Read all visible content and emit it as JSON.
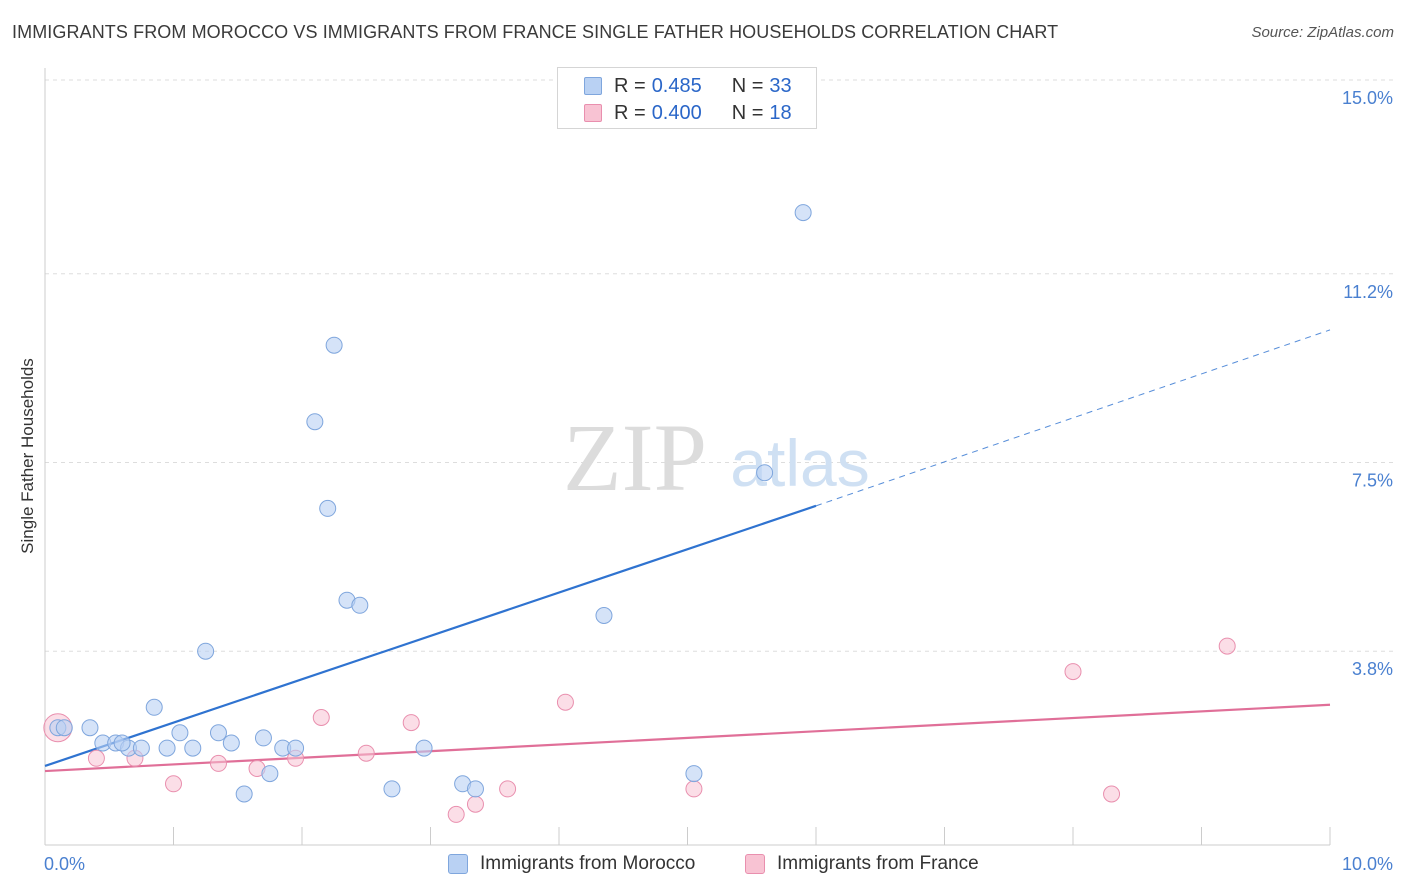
{
  "title": "IMMIGRANTS FROM MOROCCO VS IMMIGRANTS FROM FRANCE SINGLE FATHER HOUSEHOLDS CORRELATION CHART",
  "source": "Source: ZipAtlas.com",
  "watermark": {
    "zip": "ZIP",
    "atlas": "atlas"
  },
  "legend": {
    "r_label": "R =",
    "n_label": "N =",
    "rows": [
      {
        "r": "0.485",
        "n": "33"
      },
      {
        "r": "0.400",
        "n": "18"
      }
    ]
  },
  "colors": {
    "morocco_fill": "#b9d1f3",
    "morocco_stroke": "#7fa6dd",
    "morocco_line": "#2f73d0",
    "france_fill": "#f8c3d3",
    "france_stroke": "#e98fae",
    "france_line": "#e06f98",
    "axis_text": "#4a80d0",
    "grid": "#dddddd"
  },
  "chart_data": {
    "type": "scatter",
    "title": "IMMIGRANTS FROM MOROCCO VS IMMIGRANTS FROM FRANCE SINGLE FATHER HOUSEHOLDS CORRELATION CHART",
    "xlabel": "",
    "ylabel": "Single Father Households",
    "xlim": [
      0,
      10
    ],
    "ylim": [
      0,
      15
    ],
    "x_tick_labels": [
      "0.0%",
      "10.0%"
    ],
    "y_ticks": [
      3.8,
      7.5,
      11.2,
      15.0
    ],
    "y_tick_labels": [
      "3.8%",
      "7.5%",
      "11.2%",
      "15.0%"
    ],
    "grid": true,
    "series": [
      {
        "name": "Immigrants from Morocco",
        "r": 0.485,
        "n": 33,
        "points": [
          [
            0.1,
            2.3
          ],
          [
            0.35,
            2.3
          ],
          [
            0.45,
            2.0
          ],
          [
            0.55,
            2.0
          ],
          [
            0.65,
            1.9
          ],
          [
            0.75,
            1.9
          ],
          [
            0.85,
            2.7
          ],
          [
            0.95,
            1.9
          ],
          [
            1.05,
            2.2
          ],
          [
            1.15,
            1.9
          ],
          [
            1.25,
            3.8
          ],
          [
            1.35,
            2.2
          ],
          [
            1.45,
            2.0
          ],
          [
            1.55,
            1.0
          ],
          [
            1.7,
            2.1
          ],
          [
            1.75,
            1.4
          ],
          [
            1.85,
            1.9
          ],
          [
            1.95,
            1.9
          ],
          [
            2.1,
            8.3
          ],
          [
            2.2,
            6.6
          ],
          [
            2.25,
            9.8
          ],
          [
            2.35,
            4.8
          ],
          [
            2.45,
            4.7
          ],
          [
            2.7,
            1.1
          ],
          [
            2.95,
            1.9
          ],
          [
            3.25,
            1.2
          ],
          [
            3.35,
            1.1
          ],
          [
            4.35,
            4.5
          ],
          [
            5.05,
            1.4
          ],
          [
            5.6,
            7.3
          ],
          [
            5.9,
            12.4
          ],
          [
            0.6,
            2.0
          ],
          [
            0.15,
            2.3
          ]
        ],
        "trend": {
          "x": [
            0,
            6.0
          ],
          "y": [
            1.55,
            6.65
          ]
        },
        "trend_extension": {
          "x": [
            6.0,
            10.0
          ],
          "y": [
            6.65,
            10.1
          ]
        }
      },
      {
        "name": "Immigrants from France",
        "r": 0.4,
        "n": 18,
        "points": [
          [
            0.1,
            2.3
          ],
          [
            0.4,
            1.7
          ],
          [
            0.7,
            1.7
          ],
          [
            1.0,
            1.2
          ],
          [
            1.35,
            1.6
          ],
          [
            1.65,
            1.5
          ],
          [
            1.95,
            1.7
          ],
          [
            2.15,
            2.5
          ],
          [
            2.5,
            1.8
          ],
          [
            2.85,
            2.4
          ],
          [
            3.2,
            0.6
          ],
          [
            3.35,
            0.8
          ],
          [
            3.6,
            1.1
          ],
          [
            4.05,
            2.8
          ],
          [
            5.05,
            1.1
          ],
          [
            8.0,
            3.4
          ],
          [
            8.3,
            1.0
          ],
          [
            9.2,
            3.9
          ]
        ],
        "trend": {
          "x": [
            0,
            10.0
          ],
          "y": [
            1.45,
            2.75
          ]
        }
      }
    ]
  }
}
